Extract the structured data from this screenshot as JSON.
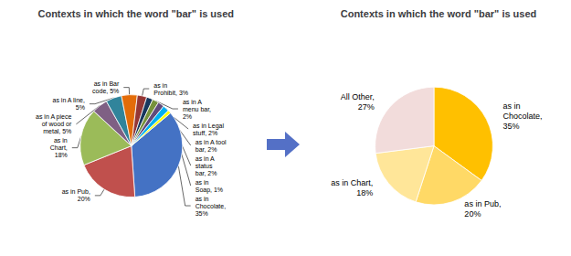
{
  "chart_data": [
    {
      "type": "pie",
      "title": "Contexts in which the word \"bar\" is used",
      "categories": [
        "as in\nChocolate,\n35%",
        "as in Pub,\n20%",
        "as in\nChart,\n18%",
        "as in A piece\nof wood or\nmetal, 5%",
        "as in A line,\n5%",
        "as in Bar\ncode, 5%",
        "as in\nProhibit, 3%",
        "as in Legal\nstuff, 2%",
        "as in A\nmenu bar,\n2%",
        "as in A tool\nbar, 2%",
        "as in A\nstatus\nbar, 2%",
        "as in\nSoap, 1%"
      ],
      "values": [
        35,
        20,
        18,
        5,
        5,
        5,
        3,
        2,
        2,
        2,
        2,
        1
      ],
      "colors": [
        "#4472C4",
        "#C0504D",
        "#9BBB59",
        "#7F6084",
        "#31849B",
        "#E36C09",
        "#953735",
        "#17375E",
        "#76923C",
        "#604A7B",
        "#00B0F0",
        "#FFFF00"
      ]
    },
    {
      "type": "pie",
      "title": "Contexts in which the word \"bar\" is used",
      "categories": [
        "as in\nChocolate,\n35%",
        "as in Pub,\n20%",
        "as in Chart,\n18%",
        "All Other,\n27%"
      ],
      "values": [
        35,
        20,
        18,
        27
      ],
      "colors": [
        "#FFC000",
        "#FFD966",
        "#FFE699",
        "#F2DCDB"
      ]
    }
  ]
}
